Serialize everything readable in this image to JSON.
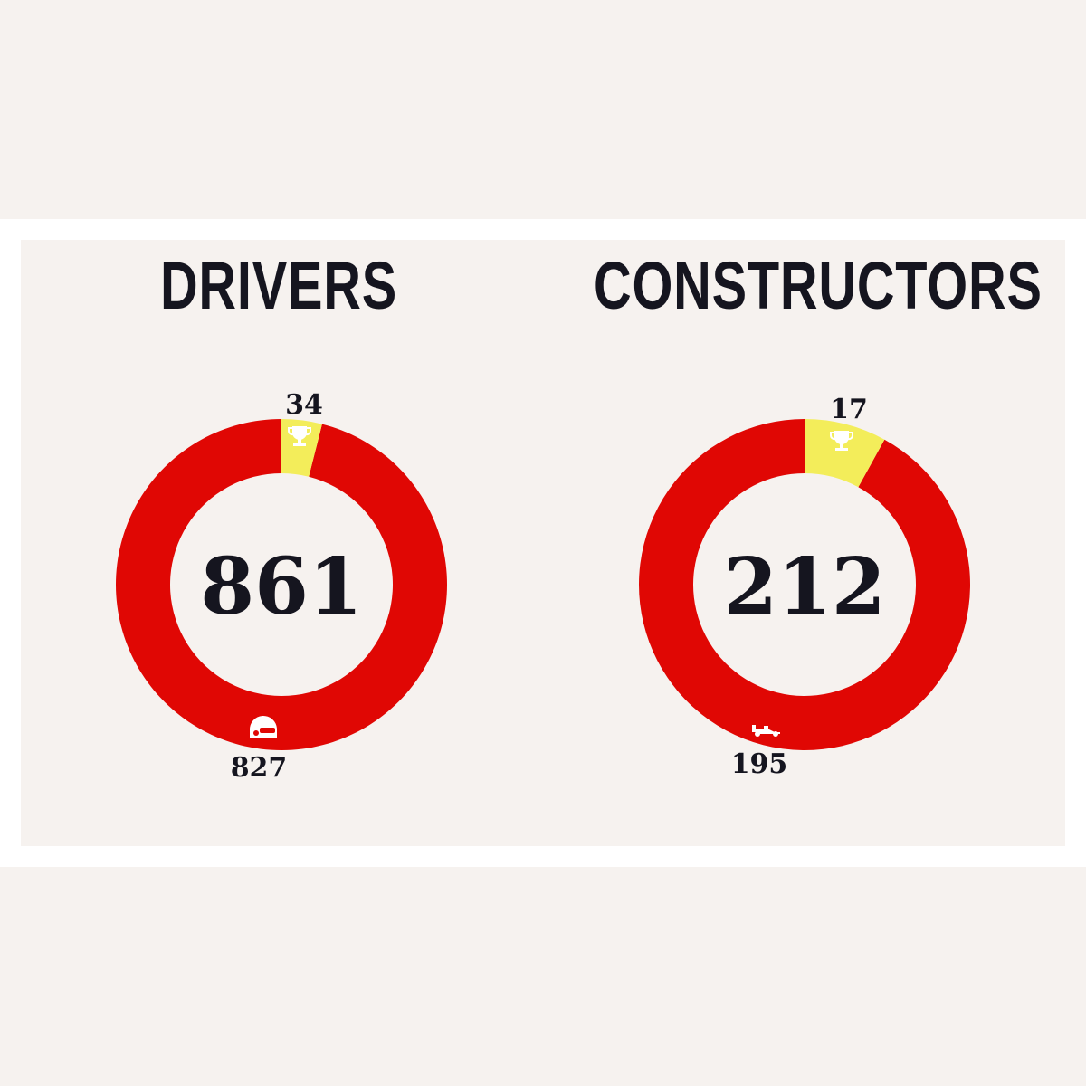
{
  "colors": {
    "red": "#e00704",
    "yellow": "#f3ed5a",
    "text": "#15151f",
    "background": "#f6f2ef"
  },
  "chart_data": [
    {
      "type": "pie",
      "title": "DRIVERS",
      "total": "861",
      "slices": [
        {
          "label": "34",
          "value": 34,
          "color": "#f3ed5a",
          "icon": "trophy-icon"
        },
        {
          "label": "827",
          "value": 827,
          "color": "#e00704",
          "icon": "helmet-icon"
        }
      ]
    },
    {
      "type": "pie",
      "title": "CONSTRUCTORS",
      "total": "212",
      "slices": [
        {
          "label": "17",
          "value": 17,
          "color": "#f3ed5a",
          "icon": "trophy-icon"
        },
        {
          "label": "195",
          "value": 195,
          "color": "#e00704",
          "icon": "race-car-icon"
        }
      ]
    }
  ]
}
